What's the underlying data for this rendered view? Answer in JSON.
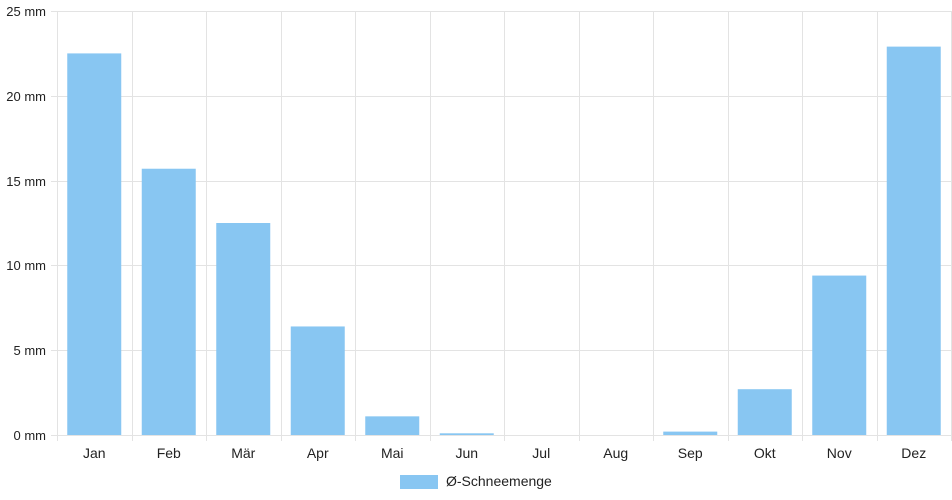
{
  "chart_data": {
    "type": "bar",
    "categories": [
      "Jan",
      "Feb",
      "Mär",
      "Apr",
      "Mai",
      "Jun",
      "Jul",
      "Aug",
      "Sep",
      "Okt",
      "Nov",
      "Dez"
    ],
    "series": [
      {
        "name": "Ø-Schneemenge",
        "values": [
          22.5,
          15.7,
          12.5,
          6.4,
          1.1,
          0.1,
          0,
          0,
          0.2,
          2.7,
          9.4,
          22.9
        ],
        "color": "#88c6f2"
      }
    ],
    "ylim": [
      0,
      25
    ],
    "yticks": [
      0,
      5,
      10,
      15,
      20,
      25
    ],
    "ytick_labels": [
      "0 mm",
      "5 mm",
      "10 mm",
      "15 mm",
      "20 mm",
      "25 mm"
    ],
    "grid": true,
    "legend": "bottom",
    "title": "",
    "xlabel": "",
    "ylabel": ""
  }
}
